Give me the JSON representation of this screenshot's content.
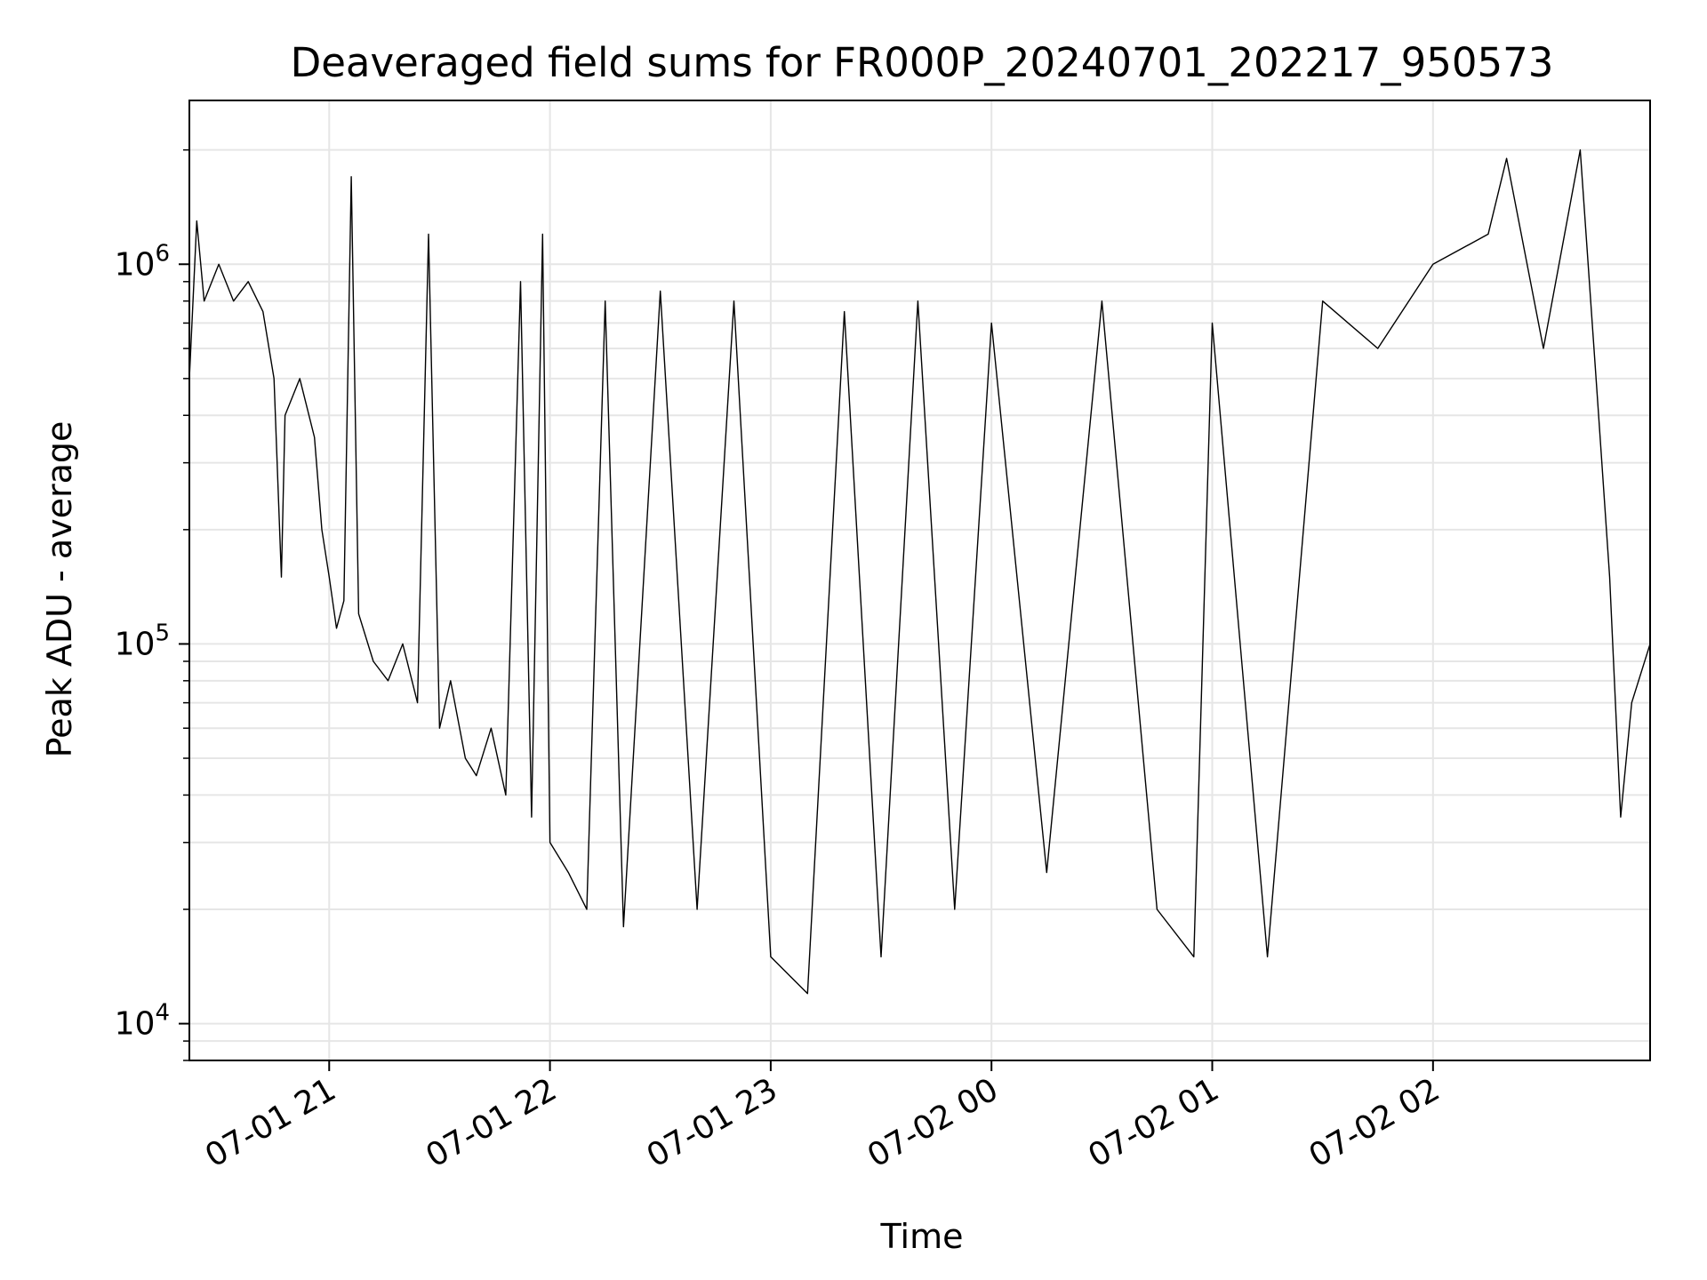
{
  "chart_data": {
    "type": "line",
    "title": "Deaveraged field sums for FR000P_20240701_202217_950573",
    "xlabel": "Time",
    "ylabel": "Peak ADU - average",
    "y_scale": "log",
    "ylim": [
      8000,
      2700000
    ],
    "xlim": [
      "2024-07-01 20:22",
      "2024-07-02 02:59"
    ],
    "grid": true,
    "line_color": "#000000",
    "grid_color": "#e6e6e6",
    "x_ticks": [
      "07-01 21",
      "07-01 22",
      "07-01 23",
      "07-02 00",
      "07-02 01",
      "07-02 02"
    ],
    "x_tick_times": [
      "2024-07-01 21:00",
      "2024-07-01 22:00",
      "2024-07-01 23:00",
      "2024-07-02 00:00",
      "2024-07-02 01:00",
      "2024-07-02 02:00"
    ],
    "y_ticks": [
      {
        "value": 10000,
        "base": "10",
        "exp": "4"
      },
      {
        "value": 100000,
        "base": "10",
        "exp": "5"
      },
      {
        "value": 1000000,
        "base": "10",
        "exp": "6"
      }
    ],
    "series": [
      {
        "values_description_free": true,
        "points": [
          [
            "2024-07-01 20:22",
            500000
          ],
          [
            "2024-07-01 20:24",
            1300000
          ],
          [
            "2024-07-01 20:26",
            800000
          ],
          [
            "2024-07-01 20:30",
            1000000
          ],
          [
            "2024-07-01 20:34",
            800000
          ],
          [
            "2024-07-01 20:38",
            900000
          ],
          [
            "2024-07-01 20:42",
            750000
          ],
          [
            "2024-07-01 20:45",
            500000
          ],
          [
            "2024-07-01 20:47",
            150000
          ],
          [
            "2024-07-01 20:48",
            400000
          ],
          [
            "2024-07-01 20:52",
            500000
          ],
          [
            "2024-07-01 20:56",
            350000
          ],
          [
            "2024-07-01 20:58",
            200000
          ],
          [
            "2024-07-01 21:00",
            150000
          ],
          [
            "2024-07-01 21:02",
            110000
          ],
          [
            "2024-07-01 21:04",
            130000
          ],
          [
            "2024-07-01 21:06",
            1700000
          ],
          [
            "2024-07-01 21:08",
            120000
          ],
          [
            "2024-07-01 21:12",
            90000
          ],
          [
            "2024-07-01 21:16",
            80000
          ],
          [
            "2024-07-01 21:20",
            100000
          ],
          [
            "2024-07-01 21:24",
            70000
          ],
          [
            "2024-07-01 21:27",
            1200000
          ],
          [
            "2024-07-01 21:30",
            60000
          ],
          [
            "2024-07-01 21:33",
            80000
          ],
          [
            "2024-07-01 21:37",
            50000
          ],
          [
            "2024-07-01 21:40",
            45000
          ],
          [
            "2024-07-01 21:44",
            60000
          ],
          [
            "2024-07-01 21:48",
            40000
          ],
          [
            "2024-07-01 21:52",
            900000
          ],
          [
            "2024-07-01 21:55",
            35000
          ],
          [
            "2024-07-01 21:58",
            1200000
          ],
          [
            "2024-07-01 22:00",
            30000
          ],
          [
            "2024-07-01 22:05",
            25000
          ],
          [
            "2024-07-01 22:10",
            20000
          ],
          [
            "2024-07-01 22:15",
            800000
          ],
          [
            "2024-07-01 22:20",
            18000
          ],
          [
            "2024-07-01 22:30",
            850000
          ],
          [
            "2024-07-01 22:40",
            20000
          ],
          [
            "2024-07-01 22:50",
            800000
          ],
          [
            "2024-07-01 23:00",
            15000
          ],
          [
            "2024-07-01 23:10",
            12000
          ],
          [
            "2024-07-01 23:20",
            750000
          ],
          [
            "2024-07-01 23:30",
            15000
          ],
          [
            "2024-07-01 23:40",
            800000
          ],
          [
            "2024-07-01 23:50",
            20000
          ],
          [
            "2024-07-02 00:00",
            700000
          ],
          [
            "2024-07-02 00:15",
            25000
          ],
          [
            "2024-07-02 00:30",
            800000
          ],
          [
            "2024-07-02 00:45",
            20000
          ],
          [
            "2024-07-02 00:55",
            15000
          ],
          [
            "2024-07-02 01:00",
            700000
          ],
          [
            "2024-07-02 01:15",
            15000
          ],
          [
            "2024-07-02 01:30",
            800000
          ],
          [
            "2024-07-02 01:45",
            600000
          ],
          [
            "2024-07-02 02:00",
            1000000
          ],
          [
            "2024-07-02 02:15",
            1200000
          ],
          [
            "2024-07-02 02:20",
            1900000
          ],
          [
            "2024-07-02 02:30",
            600000
          ],
          [
            "2024-07-02 02:40",
            2000000
          ],
          [
            "2024-07-02 02:45",
            400000
          ],
          [
            "2024-07-02 02:48",
            150000
          ],
          [
            "2024-07-02 02:51",
            35000
          ],
          [
            "2024-07-02 02:54",
            70000
          ],
          [
            "2024-07-02 02:59",
            100000
          ]
        ]
      }
    ]
  }
}
